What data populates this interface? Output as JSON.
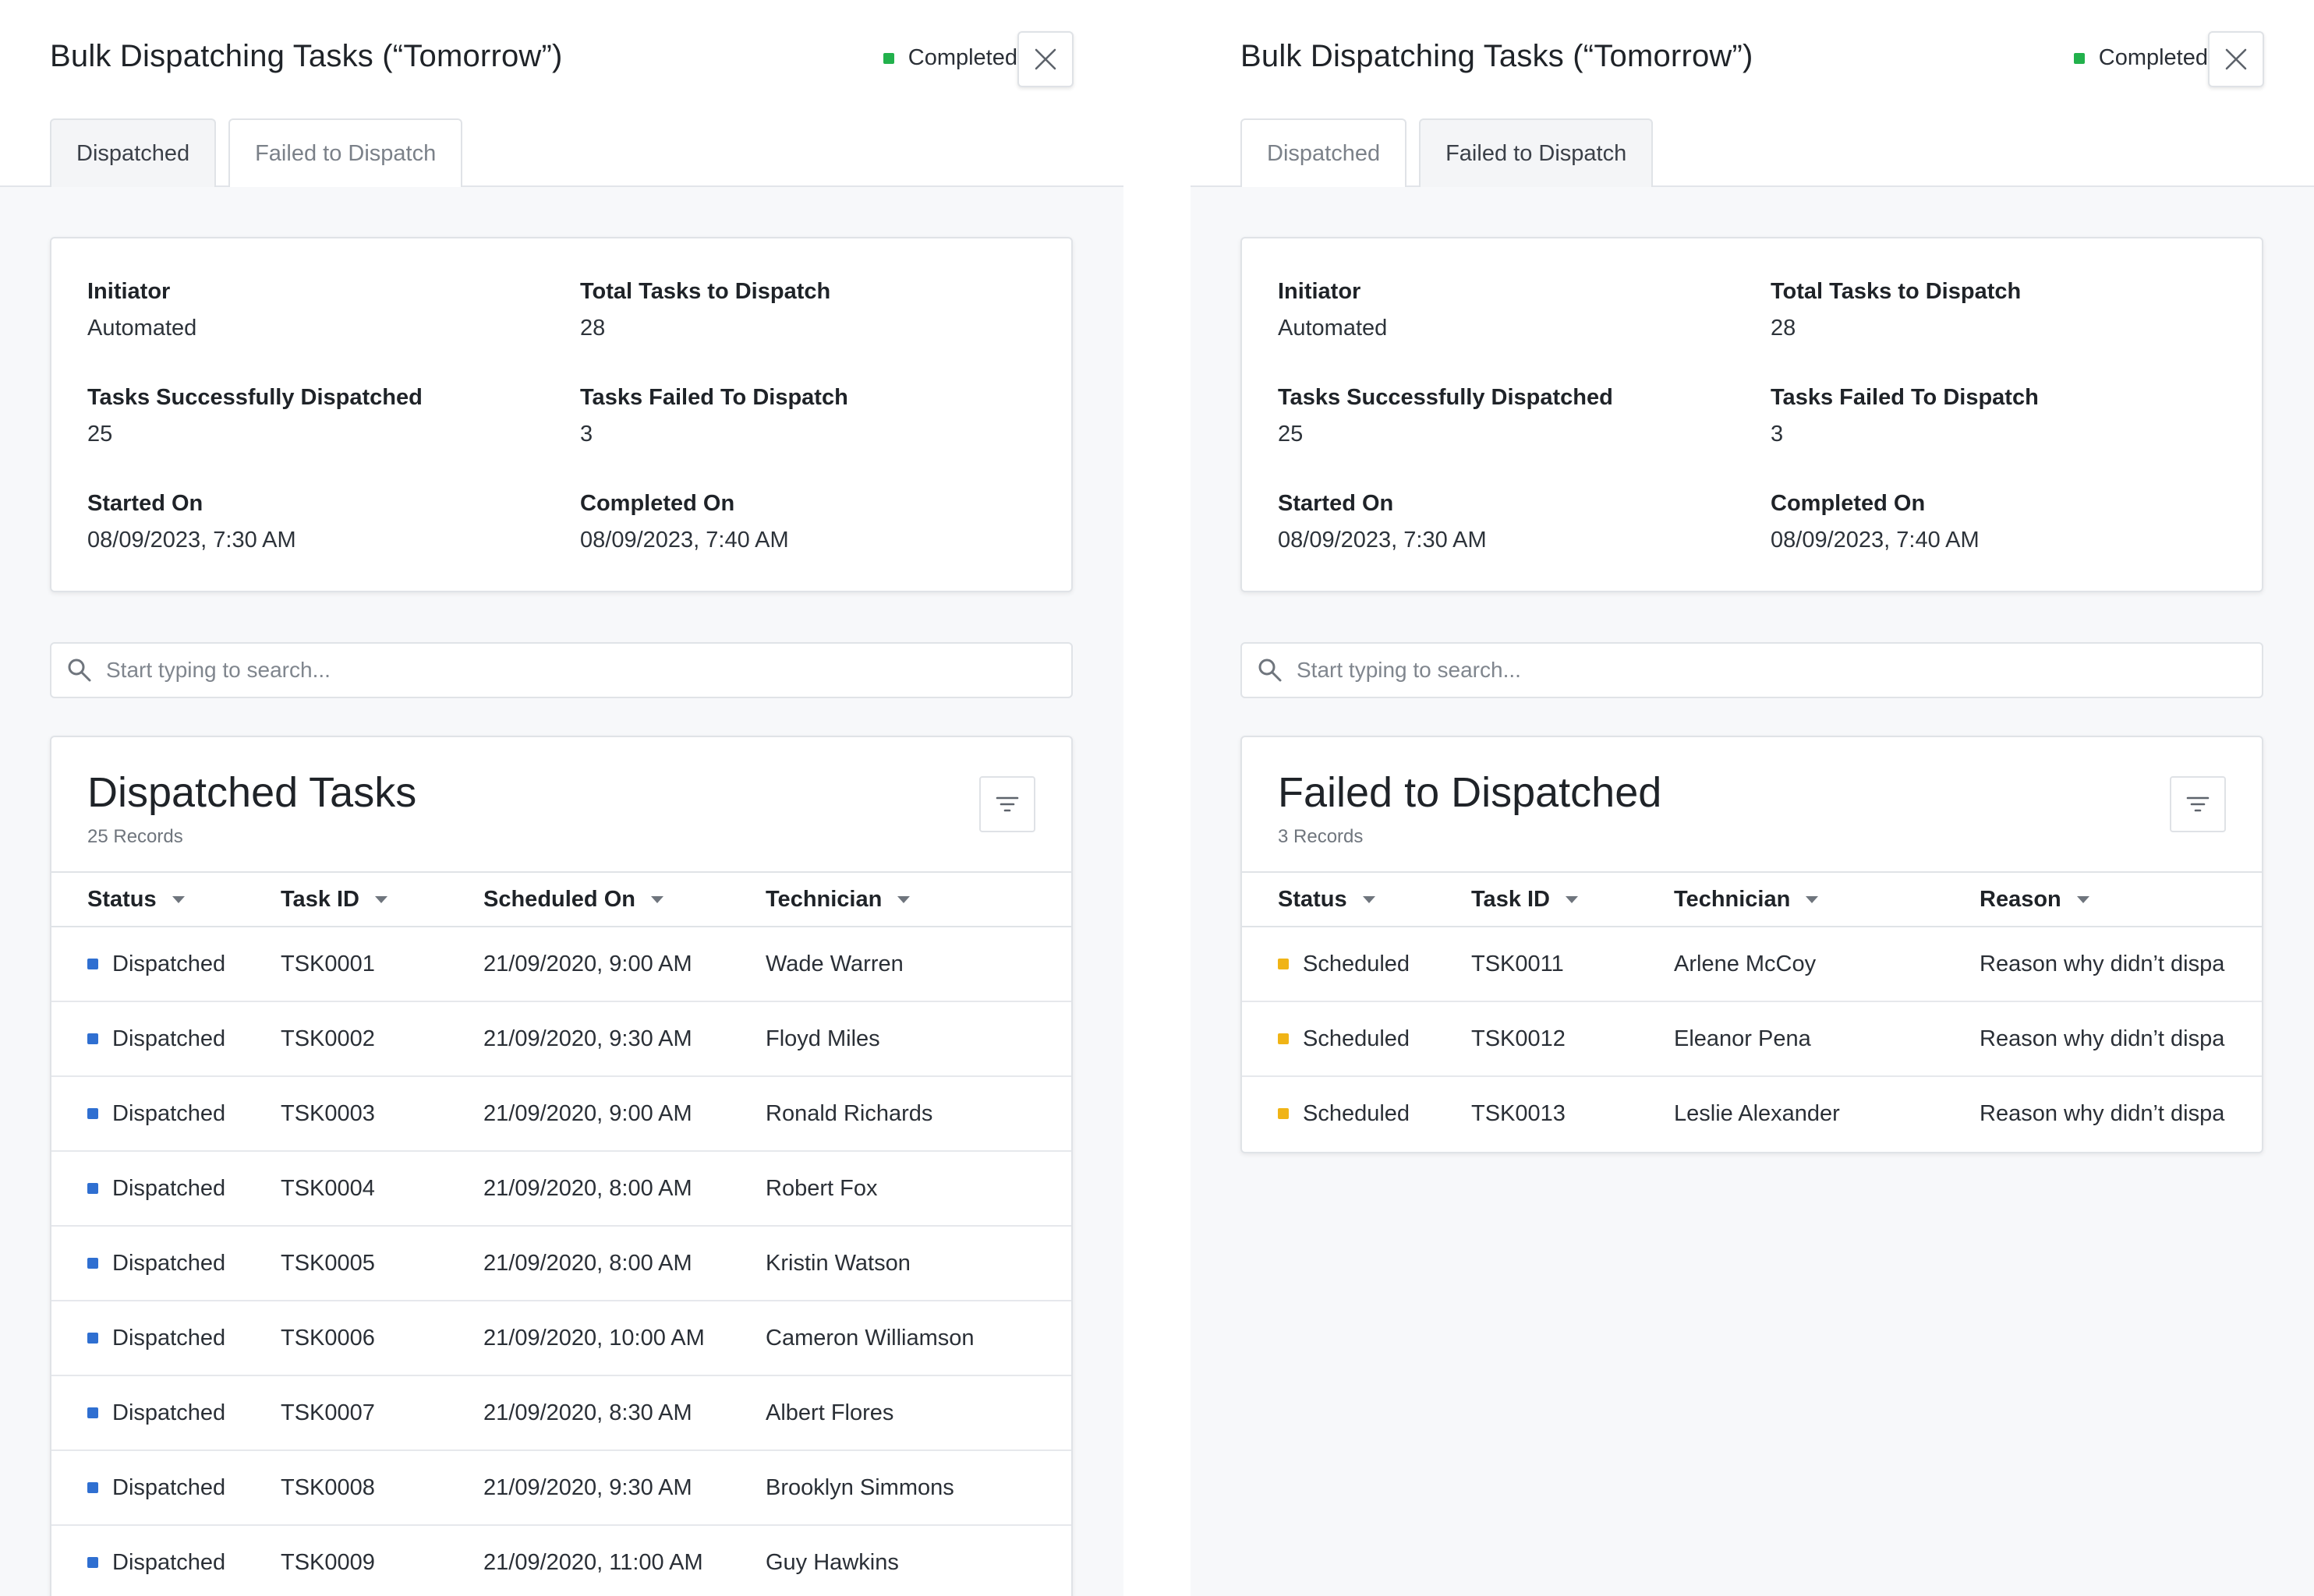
{
  "left": {
    "title": "Bulk Dispatching Tasks (“Tomorrow”)",
    "status": "Completed",
    "tabs": [
      "Dispatched",
      "Failed to Dispatch"
    ],
    "summary": {
      "initiator_label": "Initiator",
      "initiator_value": "Automated",
      "total_label": "Total Tasks to Dispatch",
      "total_value": "28",
      "success_label": "Tasks Successfully Dispatched",
      "success_value": "25",
      "failed_label": "Tasks Failed To Dispatch",
      "failed_value": "3",
      "started_label": "Started On",
      "started_value": "08/09/2023, 7:30 AM",
      "completed_label": "Completed On",
      "completed_value": "08/09/2023, 7:40 AM"
    },
    "search_placeholder": "Start typing to search...",
    "table": {
      "title": "Dispatched Tasks",
      "records": "25 Records",
      "columns": [
        "Status",
        "Task ID",
        "Scheduled On",
        "Technician"
      ],
      "rows": [
        [
          "Dispatched",
          "TSK0001",
          "21/09/2020, 9:00 AM",
          "Wade Warren"
        ],
        [
          "Dispatched",
          "TSK0002",
          "21/09/2020, 9:30 AM",
          "Floyd Miles"
        ],
        [
          "Dispatched",
          "TSK0003",
          "21/09/2020, 9:00 AM",
          "Ronald Richards"
        ],
        [
          "Dispatched",
          "TSK0004",
          "21/09/2020, 8:00 AM",
          "Robert Fox"
        ],
        [
          "Dispatched",
          "TSK0005",
          "21/09/2020, 8:00 AM",
          "Kristin Watson"
        ],
        [
          "Dispatched",
          "TSK0006",
          "21/09/2020, 10:00 AM",
          "Cameron Williamson"
        ],
        [
          "Dispatched",
          "TSK0007",
          "21/09/2020, 8:30 AM",
          "Albert Flores"
        ],
        [
          "Dispatched",
          "TSK0008",
          "21/09/2020, 9:30 AM",
          "Brooklyn Simmons"
        ],
        [
          "Dispatched",
          "TSK0009",
          "21/09/2020, 11:00 AM",
          "Guy Hawkins"
        ]
      ]
    }
  },
  "right": {
    "title": "Bulk Dispatching Tasks (“Tomorrow”)",
    "status": "Completed",
    "tabs": [
      "Dispatched",
      "Failed to Dispatch"
    ],
    "summary": {
      "initiator_label": "Initiator",
      "initiator_value": "Automated",
      "total_label": "Total Tasks to Dispatch",
      "total_value": "28",
      "success_label": "Tasks Successfully Dispatched",
      "success_value": "25",
      "failed_label": "Tasks Failed To Dispatch",
      "failed_value": "3",
      "started_label": "Started On",
      "started_value": "08/09/2023, 7:30 AM",
      "completed_label": "Completed On",
      "completed_value": "08/09/2023, 7:40 AM"
    },
    "search_placeholder": "Start typing to search...",
    "table": {
      "title": "Failed to Dispatched",
      "records": "3 Records",
      "columns": [
        "Status",
        "Task ID",
        "Technician",
        "Reason"
      ],
      "rows": [
        [
          "Scheduled",
          "TSK0011",
          "Arlene McCoy",
          "Reason why didn’t dispa"
        ],
        [
          "Scheduled",
          "TSK0012",
          "Eleanor Pena",
          "Reason why didn’t dispa"
        ],
        [
          "Scheduled",
          "TSK0013",
          "Leslie Alexander",
          "Reason why didn’t dispa"
        ]
      ]
    }
  },
  "colors": {
    "completed": "#22b14c",
    "dispatched": "#2f6fd1",
    "scheduled": "#f0b416"
  },
  "icons": [
    "close-icon",
    "search-icon",
    "filter-icon",
    "sort-caret-icon"
  ]
}
